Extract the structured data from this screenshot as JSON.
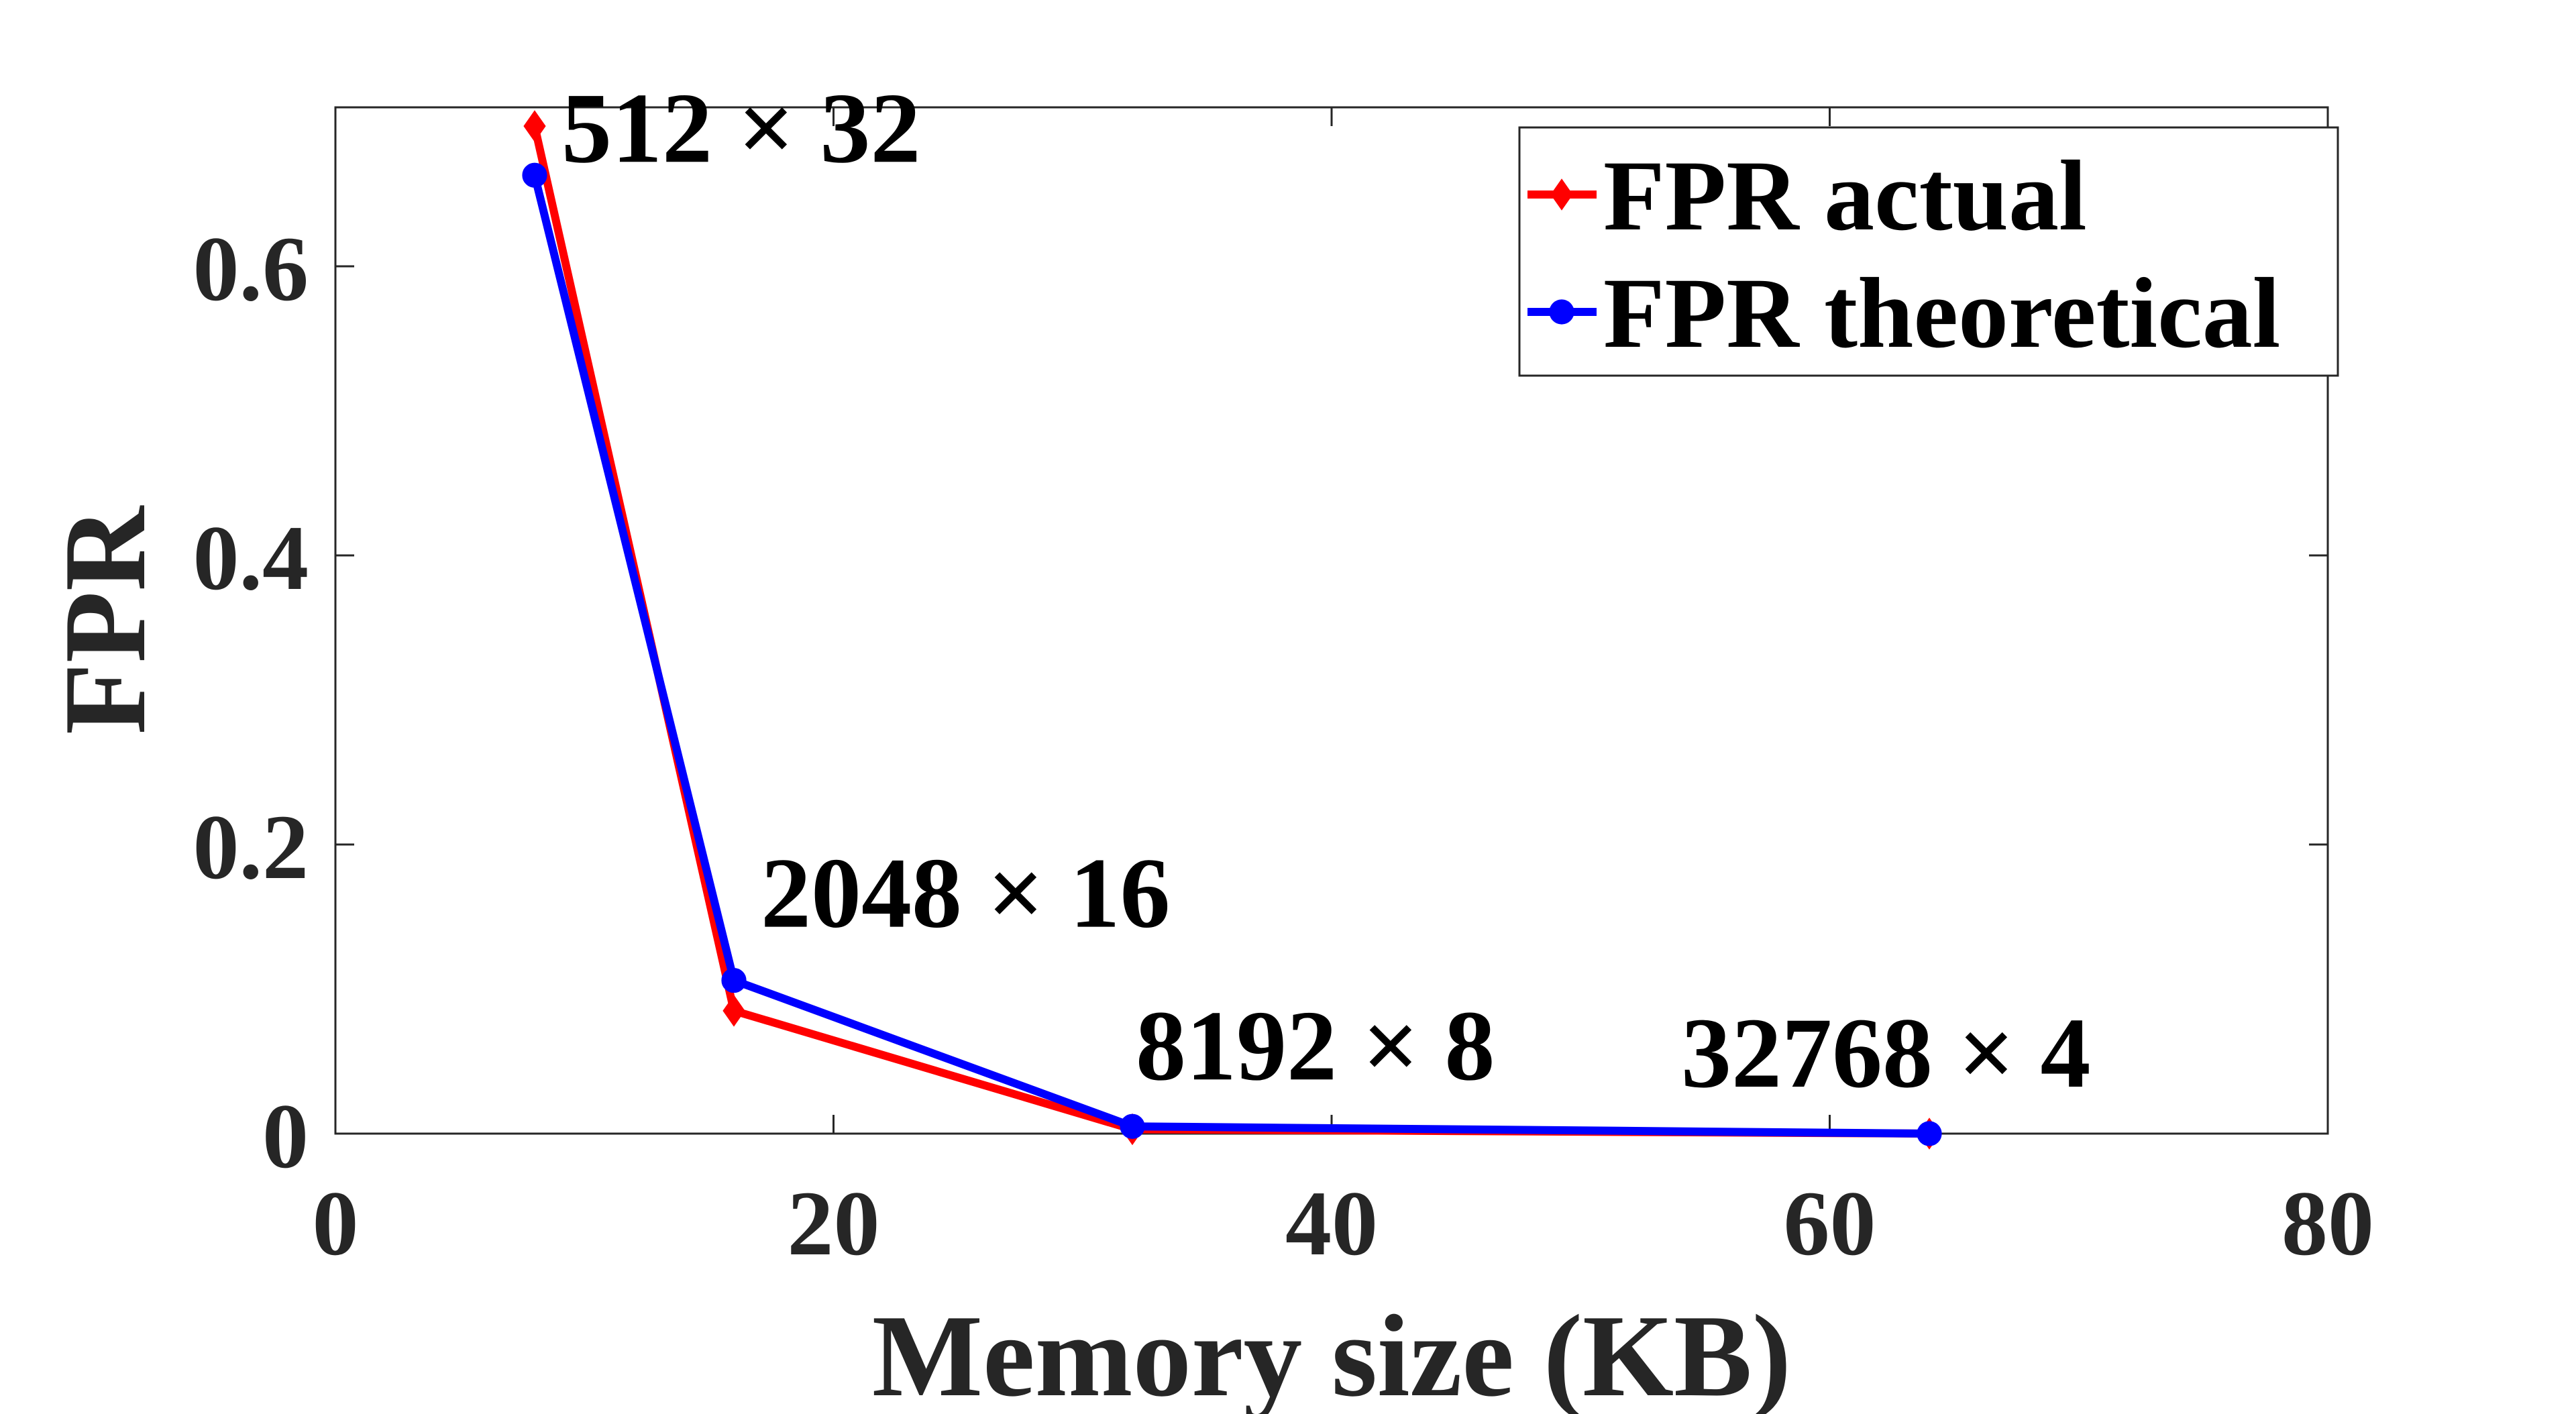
{
  "chart_data": {
    "type": "line",
    "title": "",
    "xlabel": "Memory size (KB)",
    "ylabel": "FPR",
    "xlim": [
      0,
      80
    ],
    "ylim": [
      0,
      0.71
    ],
    "xticks": [
      0,
      20,
      40,
      60,
      80
    ],
    "xtick_labels": [
      "0",
      "20",
      "40",
      "60",
      "80"
    ],
    "yticks": [
      0,
      0.2,
      0.4,
      0.6
    ],
    "ytick_labels": [
      "0",
      "0.2",
      "0.4",
      "0.6"
    ],
    "grid": false,
    "legend_position": "top-right",
    "series": [
      {
        "name": "FPR actual",
        "color": "#ff0000",
        "marker": "diamond",
        "x": [
          8,
          16,
          32,
          64
        ],
        "y": [
          0.697,
          0.085,
          0.003,
          0.0
        ]
      },
      {
        "name": "FPR theoretical",
        "color": "#0000ff",
        "marker": "circle",
        "x": [
          8,
          16,
          32,
          64
        ],
        "y": [
          0.663,
          0.106,
          0.005,
          0.0
        ]
      }
    ],
    "annotations": [
      {
        "text": "512 × 32",
        "x": 8,
        "y": 0.663
      },
      {
        "text": "2048 × 16",
        "x": 16,
        "y": 0.106
      },
      {
        "text": "8192 × 8",
        "x": 32,
        "y": 0.005
      },
      {
        "text": "32768 × 4",
        "x": 64,
        "y": 0.0
      }
    ]
  }
}
